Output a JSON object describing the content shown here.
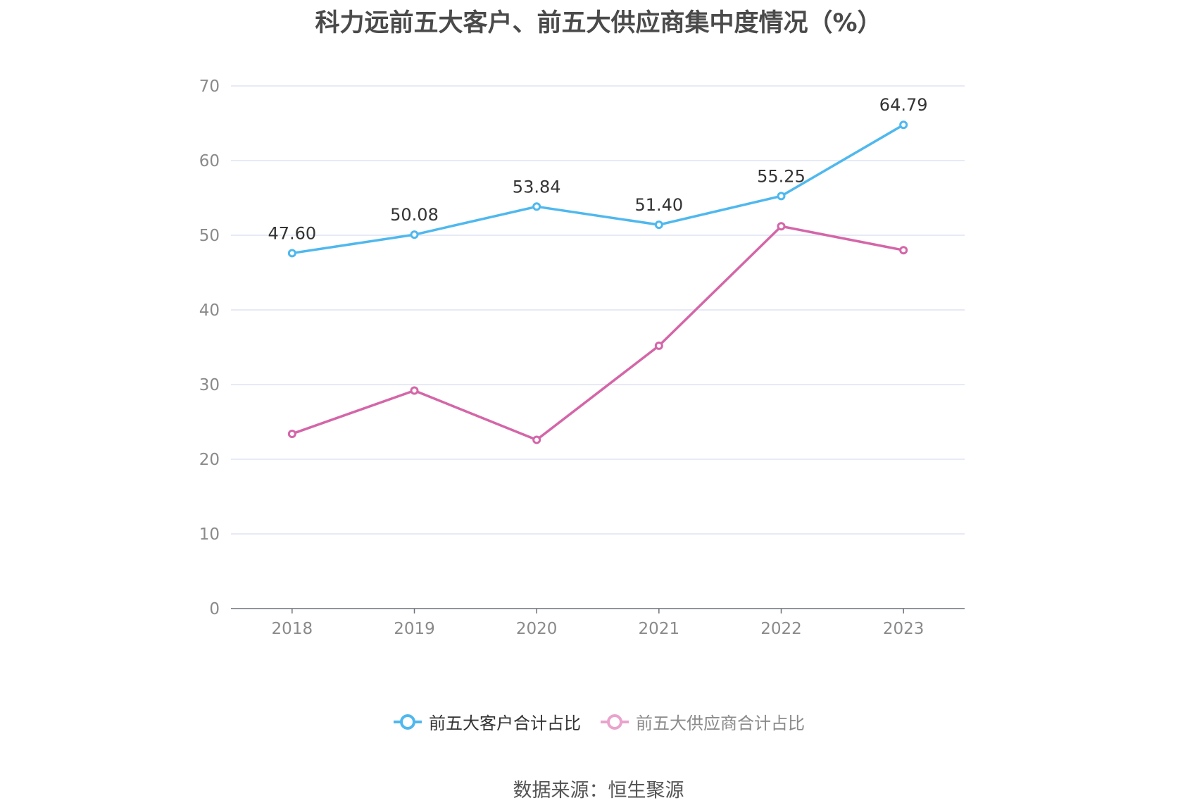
{
  "chart_data": {
    "type": "line",
    "title": "科力远前五大客户、前五大供应商集中度情况（%）",
    "categories": [
      "2018",
      "2019",
      "2020",
      "2021",
      "2022",
      "2023"
    ],
    "ylim": [
      0,
      70
    ],
    "yticks": [
      0,
      10,
      20,
      30,
      40,
      50,
      60,
      70
    ],
    "grid": true,
    "legend_position": "bottom",
    "series": [
      {
        "name": "前五大客户合计占比",
        "color": "#4fb8ee",
        "values": [
          47.6,
          50.08,
          53.84,
          51.4,
          55.25,
          64.79
        ],
        "labels": [
          "47.60",
          "50.08",
          "53.84",
          "51.40",
          "55.25",
          "64.79"
        ]
      },
      {
        "name": "前五大供应商合计占比",
        "color": "#d466a8",
        "values": [
          23.4,
          29.2,
          22.6,
          35.2,
          51.2,
          48.0
        ],
        "labels": []
      }
    ]
  },
  "legend": {
    "item_0": "前五大客户合计占比",
    "item_1": "前五大供应商合计占比",
    "item_0_color": "#4fb8ee",
    "item_1_color": "#e9a3cc",
    "item_1_text_color": "#8a8a8a"
  },
  "source": "数据来源：恒生聚源"
}
